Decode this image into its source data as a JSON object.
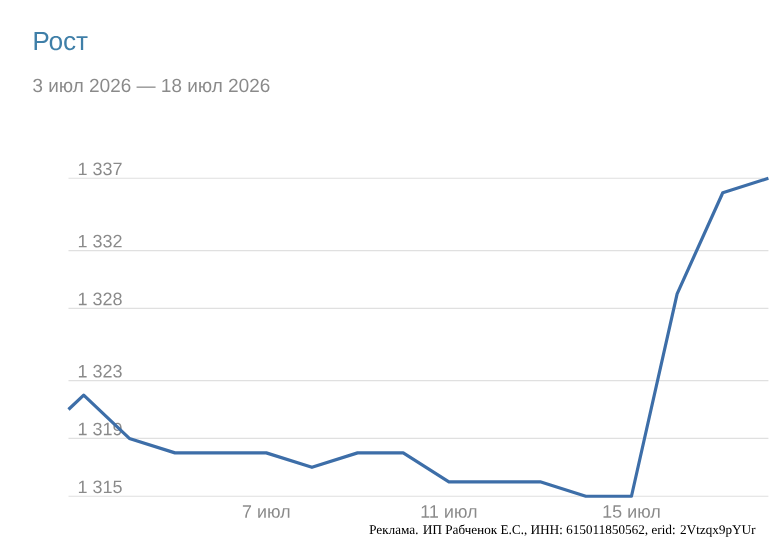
{
  "chart_data": {
    "type": "line",
    "title": "Рост",
    "subtitle": "3 июл 2026 — 18 июл 2026",
    "annotations": [
      "Реклама. ИП Рабченок Е.С., ИНН: 615011850562, erid: 2Vtzqx9pYUr"
    ],
    "x": [
      "2026-07-02T16:00",
      "2026-07-03",
      "2026-07-04",
      "2026-07-05",
      "2026-07-06",
      "2026-07-07",
      "2026-07-08",
      "2026-07-09",
      "2026-07-10",
      "2026-07-11",
      "2026-07-12",
      "2026-07-13",
      "2026-07-14",
      "2026-07-15",
      "2026-07-16",
      "2026-07-17",
      "2026-07-18"
    ],
    "series": [
      {
        "color": "#3d6ea8",
        "values": [
          1321,
          1322,
          1319,
          1318,
          1318,
          1318,
          1317,
          1318,
          1318,
          1316,
          1316,
          1316,
          1315,
          1315,
          1329,
          1336,
          1337
        ]
      }
    ],
    "xlim": [
      "2026-07-02T16:00",
      "2026-07-18"
    ],
    "xticks": [
      {
        "value": "2026-07-07",
        "label": "7 июл"
      },
      {
        "value": "2026-07-11",
        "label": "11 июл"
      },
      {
        "value": "2026-07-15",
        "label": "15 июл"
      }
    ],
    "ylim": [
      1315,
      1337
    ],
    "yticks": [
      {
        "value": 1315,
        "label": "1 315"
      },
      {
        "value": 1319,
        "label": "1 319"
      },
      {
        "value": 1323,
        "label": "1 323"
      },
      {
        "value": 1328,
        "label": "1 328"
      },
      {
        "value": 1332,
        "label": "1 332"
      },
      {
        "value": 1337,
        "label": "1 337"
      }
    ],
    "grid": "y"
  }
}
